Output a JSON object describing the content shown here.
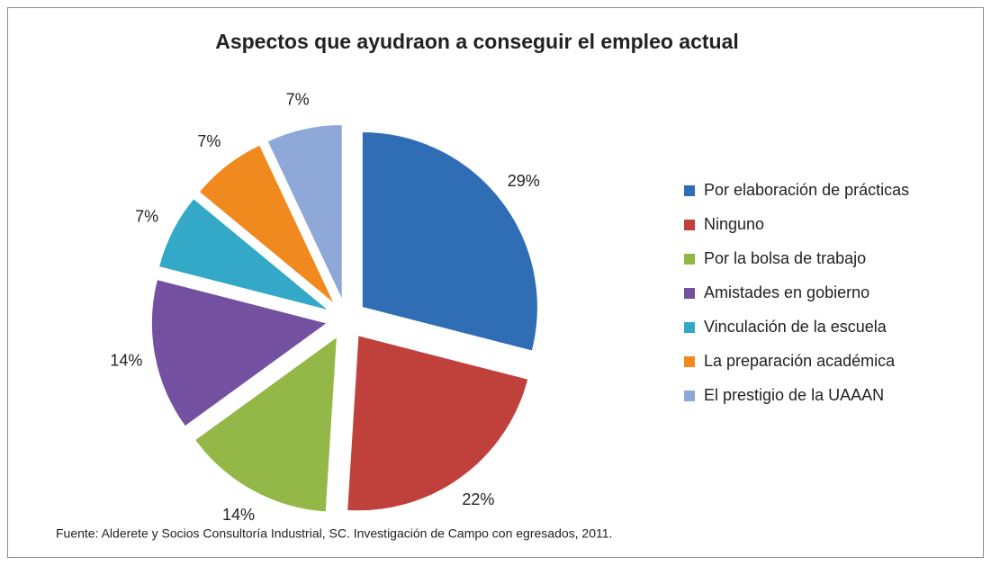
{
  "chart_data": {
    "type": "pie",
    "title": "Aspectos que ayudraon a conseguir el empleo actual",
    "categories": [
      "Por elaboración de prácticas",
      "Ninguno",
      "Por la bolsa de trabajo",
      "Amistades en gobierno",
      "Vinculación de la escuela",
      "La preparación académica",
      "El prestigio de la UAAAN"
    ],
    "values": [
      29,
      22,
      14,
      14,
      7,
      7,
      7
    ],
    "value_labels": [
      "29%",
      "22%",
      "14%",
      "14%",
      "7%",
      "7%",
      "7%"
    ],
    "colors": [
      "#2f6db5",
      "#c0403c",
      "#93b847",
      "#7451a0",
      "#33a9c7",
      "#f08a1e",
      "#8ea8d8"
    ],
    "legend": "right",
    "source": "Fuente: Alderete y Socios Consultoría Industrial, SC. Investigación de Campo con egresados, 2011."
  }
}
